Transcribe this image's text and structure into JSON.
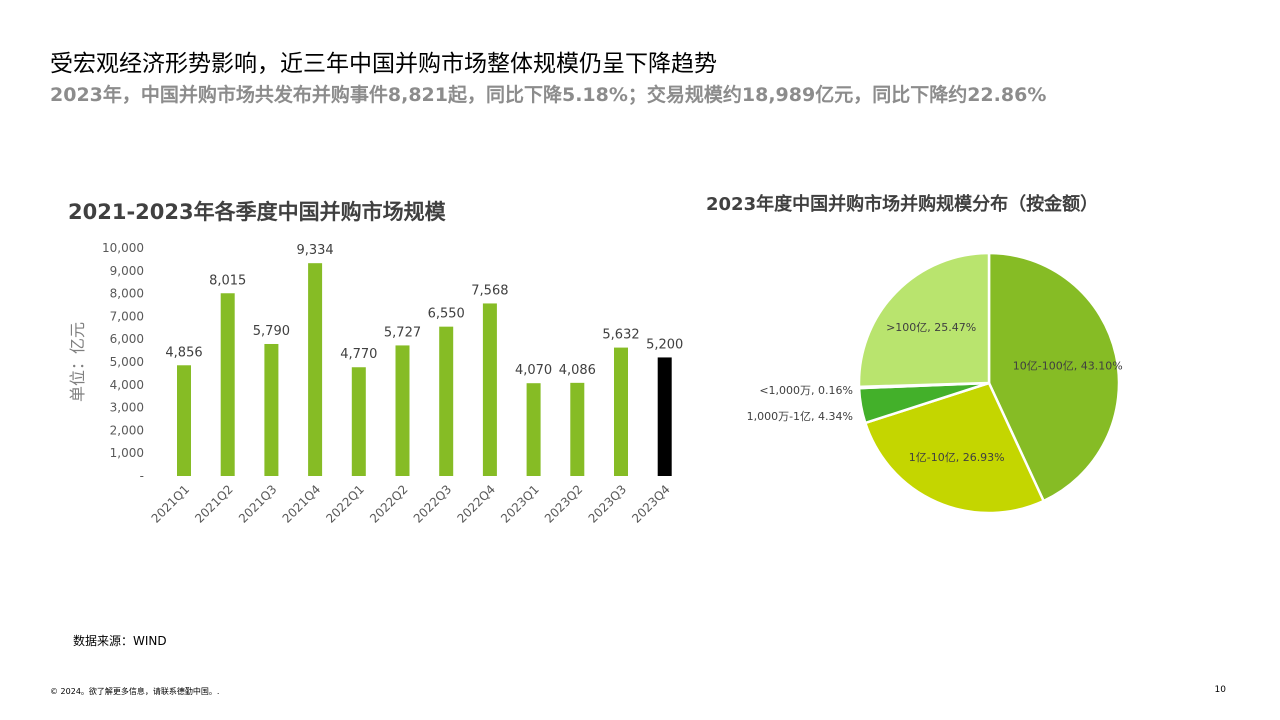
{
  "header": {
    "title": "受宏观经济形势影响，近三年中国并购市场整体规模仍呈下降趋势",
    "subtitle": "2023年，中国并购市场共发布并购事件8,821起，同比下降5.18%；交易规模约18,989亿元，同比下降约22.86%"
  },
  "chart_data": [
    {
      "type": "bar",
      "title": "2021-2023年各季度中国并购市场规模",
      "ylabel": "单位：亿元",
      "xlabel": "",
      "categories": [
        "2021Q1",
        "2021Q2",
        "2021Q3",
        "2021Q4",
        "2022Q1",
        "2022Q2",
        "2022Q3",
        "2022Q4",
        "2023Q1",
        "2023Q2",
        "2023Q3",
        "2023Q4"
      ],
      "values": [
        4856,
        8015,
        5790,
        9334,
        4770,
        5727,
        6550,
        7568,
        4070,
        4086,
        5632,
        5200
      ],
      "value_labels": [
        "4,856",
        "8,015",
        "5,790",
        "9,334",
        "4,770",
        "5,727",
        "6,550",
        "7,568",
        "4,070",
        "4,086",
        "5,632",
        "5,200"
      ],
      "ylim": [
        0,
        10000
      ],
      "y_ticks": [
        "-",
        "1,000",
        "2,000",
        "3,000",
        "4,000",
        "5,000",
        "6,000",
        "7,000",
        "8,000",
        "9,000",
        "10,000"
      ],
      "colors": [
        "#86bc25",
        "#86bc25",
        "#86bc25",
        "#86bc25",
        "#86bc25",
        "#86bc25",
        "#86bc25",
        "#86bc25",
        "#86bc25",
        "#86bc25",
        "#86bc25",
        "#000000"
      ],
      "grid": false
    },
    {
      "type": "pie",
      "title": "2023年度中国并购市场并购规模分布（按金额）",
      "slices": [
        {
          "label": "10亿-100亿, 43.10%",
          "value": 43.1,
          "color": "#86bc25"
        },
        {
          "label": "1亿-10亿, 26.93%",
          "value": 26.93,
          "color": "#c4d600"
        },
        {
          "label": "1,000万-1亿, 4.34%",
          "value": 4.34,
          "color": "#43b02a"
        },
        {
          "label": "<1,000万, 0.16%",
          "value": 0.16,
          "color": "#26890d"
        },
        {
          "label": ">100亿, 25.47%",
          "value": 25.47,
          "color": "#b9e46e"
        }
      ]
    }
  ],
  "source": "数据来源：WIND",
  "footer": "© 2024。欲了解更多信息，请联系德勤中国。.",
  "page_number": "10"
}
